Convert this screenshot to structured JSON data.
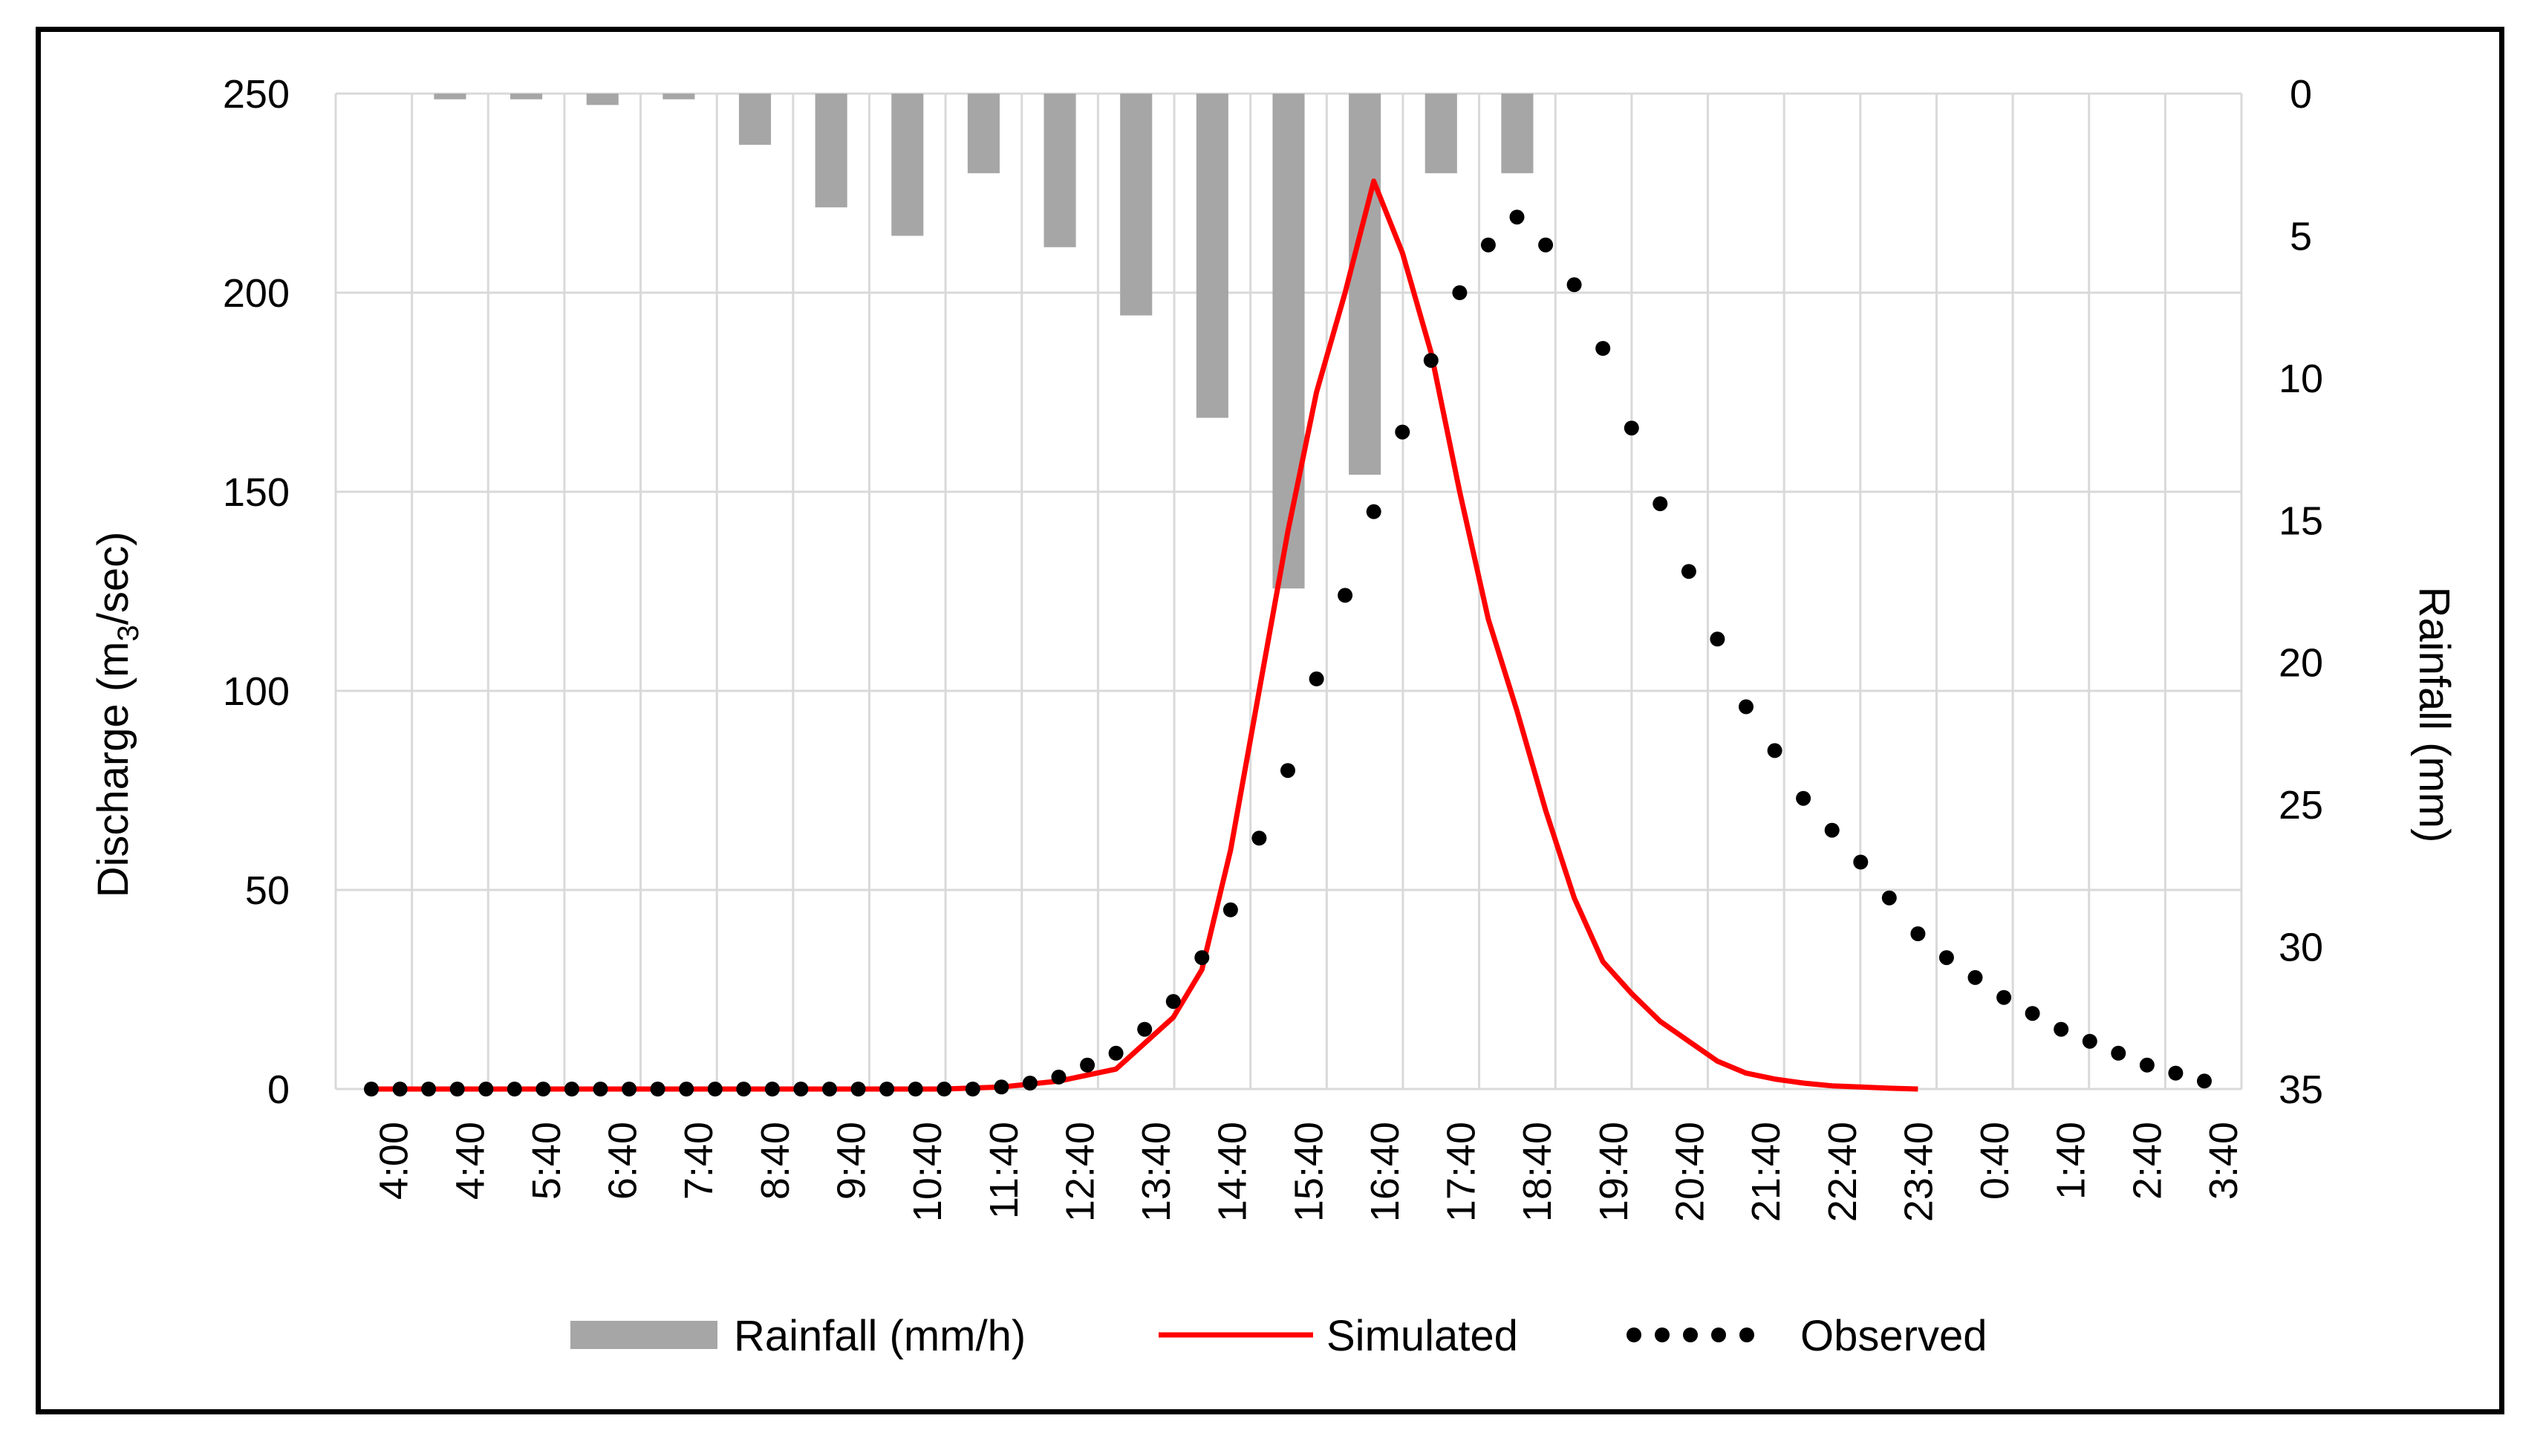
{
  "chart_data": {
    "type": "bar+line",
    "title": "",
    "ylabel": "Discharge (m3/sec)",
    "ylabel_parts": {
      "main": "Discharge (m",
      "sub": "3",
      "end": "/sec)"
    },
    "y2label": "Rainfall (mm)",
    "ylim": [
      0,
      250
    ],
    "y2lim": [
      0,
      35
    ],
    "y2_inverted": true,
    "yticks": [
      "0",
      "50",
      "100",
      "150",
      "200",
      "250"
    ],
    "y2ticks": [
      "0",
      "5",
      "10",
      "15",
      "20",
      "25",
      "30",
      "35"
    ],
    "xtick_labels": [
      "4:00",
      "4:40",
      "5:40",
      "6:40",
      "7:40",
      "8:40",
      "9:40",
      "10:40",
      "11:40",
      "12:40",
      "13:40",
      "14:40",
      "15:40",
      "16:40",
      "17:40",
      "18:40",
      "19:40",
      "20:40",
      "21:40",
      "22:40",
      "23:40",
      "0:40",
      "1:40",
      "2:40",
      "3:40"
    ],
    "grid": true,
    "legend_position": "bottom",
    "legend": [
      "Rainfall (mm/h)",
      "Simulated",
      "Observed"
    ],
    "rainfall_categories": [
      "4:40",
      "5:40",
      "6:40",
      "7:40",
      "8:40",
      "9:40",
      "10:40",
      "11:40",
      "12:40",
      "13:40",
      "14:40",
      "15:40",
      "16:40",
      "17:40",
      "18:40"
    ],
    "rainfall_mm": [
      0.2,
      0.2,
      0.4,
      0.2,
      1.8,
      4.0,
      5.0,
      2.8,
      5.4,
      7.8,
      11.4,
      17.4,
      13.4,
      2.8,
      2.8
    ],
    "simulated": {
      "name": "Simulated",
      "color": "#FF0000",
      "points": [
        [
          0,
          0
        ],
        [
          4,
          0
        ],
        [
          8,
          0
        ],
        [
          12,
          0
        ],
        [
          16,
          0
        ],
        [
          20,
          0
        ],
        [
          22,
          0.5
        ],
        [
          24,
          2
        ],
        [
          26,
          5
        ],
        [
          28,
          18
        ],
        [
          29,
          30
        ],
        [
          30,
          60
        ],
        [
          31,
          100
        ],
        [
          32,
          140
        ],
        [
          33,
          175
        ],
        [
          34,
          200
        ],
        [
          35,
          228
        ],
        [
          36,
          210
        ],
        [
          37,
          185
        ],
        [
          38,
          150
        ],
        [
          39,
          118
        ],
        [
          40,
          95
        ],
        [
          41,
          70
        ],
        [
          42,
          48
        ],
        [
          43,
          32
        ],
        [
          44,
          24
        ],
        [
          45,
          17
        ],
        [
          46,
          12
        ],
        [
          47,
          7
        ],
        [
          48,
          4
        ],
        [
          49,
          2.5
        ],
        [
          50,
          1.5
        ],
        [
          51,
          0.8
        ],
        [
          52,
          0.5
        ],
        [
          53,
          0.2
        ],
        [
          54,
          0
        ]
      ]
    },
    "observed": {
      "name": "Observed",
      "color": "#000000",
      "points": [
        [
          0,
          0
        ],
        [
          1,
          0
        ],
        [
          2,
          0
        ],
        [
          3,
          0
        ],
        [
          4,
          0
        ],
        [
          5,
          0
        ],
        [
          6,
          0
        ],
        [
          7,
          0
        ],
        [
          8,
          0
        ],
        [
          9,
          0
        ],
        [
          10,
          0
        ],
        [
          11,
          0
        ],
        [
          12,
          0
        ],
        [
          13,
          0
        ],
        [
          14,
          0
        ],
        [
          15,
          0
        ],
        [
          16,
          0
        ],
        [
          17,
          0
        ],
        [
          18,
          0
        ],
        [
          19,
          0
        ],
        [
          20,
          0
        ],
        [
          21,
          0
        ],
        [
          22,
          0.5
        ],
        [
          23,
          1.5
        ],
        [
          24,
          3
        ],
        [
          25,
          6
        ],
        [
          26,
          9
        ],
        [
          27,
          15
        ],
        [
          28,
          22
        ],
        [
          29,
          33
        ],
        [
          30,
          45
        ],
        [
          31,
          63
        ],
        [
          32,
          80
        ],
        [
          33,
          103
        ],
        [
          34,
          124
        ],
        [
          35,
          145
        ],
        [
          36,
          165
        ],
        [
          37,
          183
        ],
        [
          38,
          200
        ],
        [
          39,
          212
        ],
        [
          40,
          219
        ],
        [
          41,
          212
        ],
        [
          42,
          202
        ],
        [
          43,
          186
        ],
        [
          44,
          166
        ],
        [
          45,
          147
        ],
        [
          46,
          130
        ],
        [
          47,
          113
        ],
        [
          48,
          96
        ],
        [
          49,
          85
        ],
        [
          50,
          73
        ],
        [
          51,
          65
        ],
        [
          52,
          57
        ],
        [
          53,
          48
        ],
        [
          54,
          39
        ],
        [
          55,
          33
        ],
        [
          56,
          28
        ],
        [
          57,
          23
        ],
        [
          58,
          19
        ],
        [
          59,
          15
        ],
        [
          60,
          12
        ],
        [
          61,
          9
        ],
        [
          62,
          6
        ],
        [
          63,
          4
        ],
        [
          64,
          2
        ]
      ]
    }
  },
  "colors": {
    "rainfall_bar": "#A6A6A6",
    "simulated_line": "#FF0000",
    "observed_dots": "#000000",
    "grid": "#D9D9D9",
    "frame": "#000000"
  }
}
